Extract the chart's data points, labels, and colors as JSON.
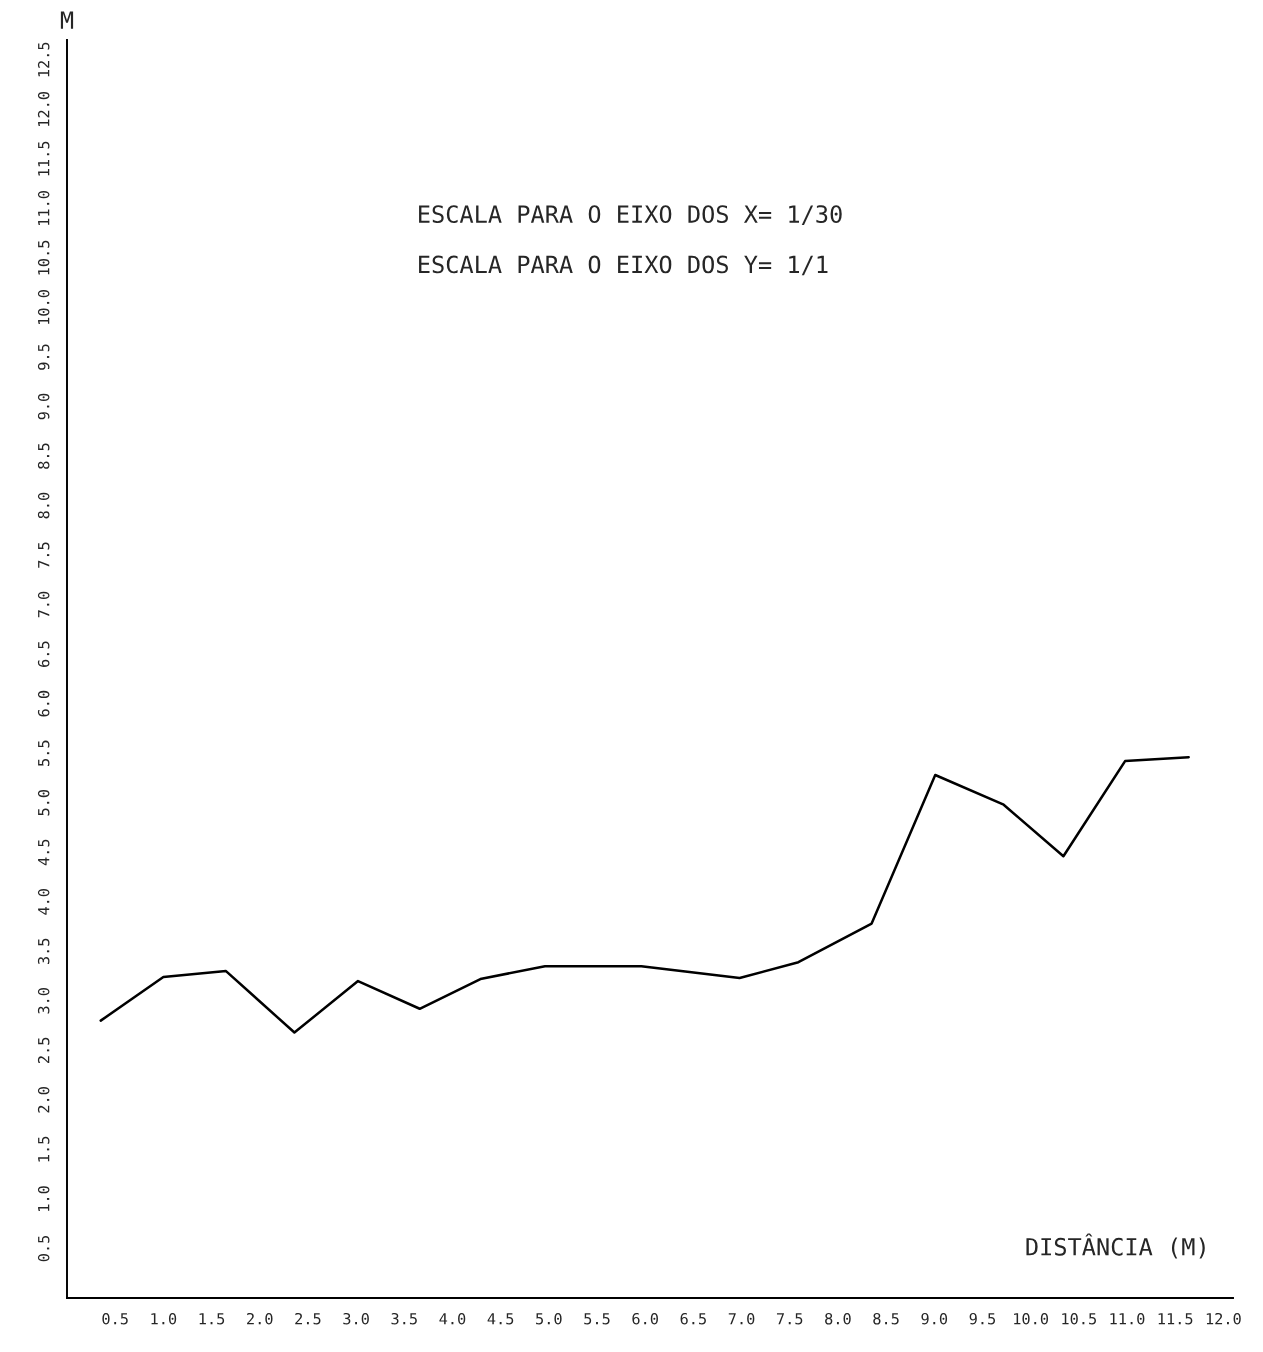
{
  "chart_data": {
    "type": "line",
    "xlabel": "DISTÂNCIA (M)",
    "ylabel": "M",
    "annotations": [
      "ESCALA PARA O EIXO DOS X= 1/30",
      "ESCALA PARA O EIXO DOS Y= 1/1"
    ],
    "x": [
      0.35,
      1.0,
      1.65,
      2.36,
      3.02,
      3.66,
      4.29,
      4.96,
      5.96,
      6.98,
      7.59,
      8.35,
      9.01,
      9.72,
      10.34,
      10.98,
      11.64
    ],
    "series": [
      {
        "color": "#000000",
        "values": [
          2.8,
          3.24,
          3.3,
          2.68,
          3.2,
          2.92,
          3.22,
          3.35,
          3.35,
          3.23,
          3.39,
          3.78,
          5.28,
          4.98,
          4.46,
          5.42,
          5.46
        ]
      }
    ],
    "xlim": [
      0,
      12.1
    ],
    "ylim": [
      0,
      12.7
    ],
    "xticks": [
      0.5,
      {
        "value": 1,
        "label": "1.0"
      },
      1.5,
      {
        "value": 2,
        "label": "2.0"
      },
      2.5,
      {
        "value": 3,
        "label": "3.0"
      },
      3.5,
      {
        "value": 4,
        "label": "4.0"
      },
      4.5,
      {
        "value": 5,
        "label": "5.0"
      },
      5.5,
      {
        "value": 6,
        "label": "6.0"
      },
      6.5,
      {
        "value": 7,
        "label": "7.0"
      },
      7.5,
      {
        "value": 8,
        "label": "8.0"
      },
      8.5,
      {
        "value": 9,
        "label": "9.0"
      },
      9.5,
      {
        "value": 10,
        "label": "10.0"
      },
      10.5,
      {
        "value": 11,
        "label": "11.0"
      },
      11.5,
      {
        "value": 12,
        "label": "12.0"
      }
    ],
    "yticks": [
      0.5,
      {
        "value": 1,
        "label": "1.0"
      },
      1.5,
      {
        "value": 2,
        "label": "2.0"
      },
      2.5,
      {
        "value": 3,
        "label": "3.0"
      },
      3.5,
      {
        "value": 4,
        "label": "4.0"
      },
      4.5,
      {
        "value": 5,
        "label": "5.0"
      },
      5.5,
      {
        "value": 6,
        "label": "6.0"
      },
      6.5,
      {
        "value": 7,
        "label": "7.0"
      },
      7.5,
      {
        "value": 8,
        "label": "8.0"
      },
      8.5,
      {
        "value": 9,
        "label": "9.0"
      },
      9.5,
      {
        "value": 10,
        "label": "10.0"
      },
      10.5,
      {
        "value": 11,
        "label": "11.0"
      },
      11.5,
      {
        "value": 12,
        "label": "12.0"
      },
      12.5
    ],
    "grid": false,
    "legend": false,
    "marker": "none",
    "line_style": "solid"
  }
}
